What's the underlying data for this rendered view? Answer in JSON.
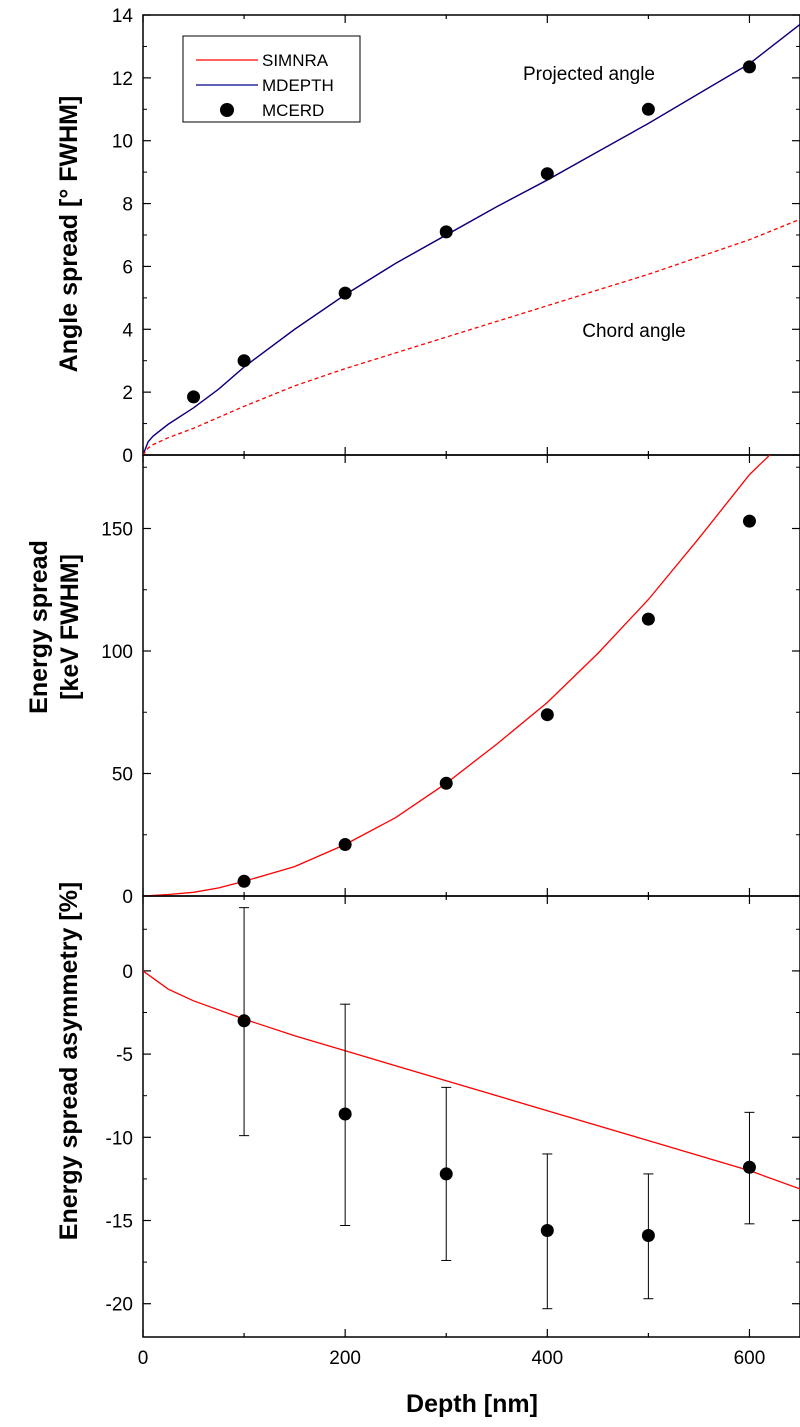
{
  "chart_data": [
    {
      "type": "line",
      "panel": "top",
      "ylabel": "Angle spread [° FWHM]",
      "xlabel": "",
      "xlim": [
        0,
        650
      ],
      "ylim": [
        0,
        14
      ],
      "yticks": [
        0,
        2,
        4,
        6,
        8,
        10,
        12,
        14
      ],
      "legend": {
        "placement": "top-left",
        "entries": [
          "SIMNRA",
          "MDEPTH",
          "MCERD"
        ]
      },
      "annotations": [
        "Projected angle",
        "Chord angle"
      ],
      "series": [
        {
          "name": "SIMNRA",
          "color": "#ff0000",
          "style": "solid",
          "x": [
            0,
            5,
            10,
            25,
            50,
            75,
            100,
            150,
            200,
            250,
            300,
            350,
            400,
            450,
            500,
            550,
            600,
            650
          ],
          "y": [
            0,
            0.42,
            0.6,
            0.98,
            1.5,
            2.1,
            2.8,
            4.0,
            5.1,
            6.1,
            7.0,
            7.9,
            8.75,
            9.65,
            10.55,
            11.5,
            12.45,
            13.7
          ]
        },
        {
          "name": "MDEPTH",
          "color": "#00008b",
          "style": "solid",
          "x": [
            0,
            5,
            10,
            25,
            50,
            75,
            100,
            150,
            200,
            250,
            300,
            350,
            400,
            450,
            500,
            550,
            600,
            650
          ],
          "y": [
            0,
            0.42,
            0.6,
            0.98,
            1.5,
            2.1,
            2.8,
            4.0,
            5.1,
            6.1,
            7.0,
            7.9,
            8.75,
            9.65,
            10.55,
            11.5,
            12.45,
            13.7
          ]
        },
        {
          "name": "",
          "color": "#ff0000",
          "style": "dashed",
          "x": [
            0,
            5,
            10,
            25,
            50,
            100,
            150,
            200,
            250,
            300,
            350,
            400,
            450,
            500,
            550,
            600,
            650
          ],
          "y": [
            0,
            0.22,
            0.33,
            0.55,
            0.85,
            1.55,
            2.2,
            2.75,
            3.25,
            3.75,
            4.25,
            4.75,
            5.25,
            5.75,
            6.3,
            6.85,
            7.5
          ]
        },
        {
          "name": "MCERD",
          "color": "#000000",
          "style": "markers",
          "x": [
            50,
            100,
            200,
            300,
            400,
            500,
            600
          ],
          "y": [
            1.85,
            3.0,
            5.15,
            7.1,
            8.95,
            11.0,
            12.35
          ]
        }
      ]
    },
    {
      "type": "line",
      "panel": "middle",
      "ylabel": "Energy spread",
      "ylabel2": "[keV FWHM]",
      "xlabel": "",
      "xlim": [
        0,
        650
      ],
      "ylim": [
        0,
        180
      ],
      "yticks": [
        0,
        50,
        100,
        150
      ],
      "series": [
        {
          "name": "SIMNRA",
          "color": "#ff0000",
          "style": "solid",
          "x": [
            0,
            25,
            50,
            75,
            100,
            150,
            200,
            250,
            300,
            350,
            400,
            450,
            500,
            550,
            600,
            620
          ],
          "y": [
            0,
            0.6,
            1.5,
            3.3,
            6,
            12,
            21,
            32,
            46,
            62,
            79,
            99,
            121,
            146,
            172,
            180
          ]
        },
        {
          "name": "MCERD",
          "color": "#000000",
          "style": "markers",
          "x": [
            100,
            200,
            300,
            400,
            500,
            600
          ],
          "y": [
            6,
            21,
            46,
            74,
            113,
            153
          ]
        }
      ]
    },
    {
      "type": "line",
      "panel": "bottom",
      "ylabel": "Energy spread asymmetry [%]",
      "xlabel": "Depth [nm]",
      "xlim": [
        0,
        650
      ],
      "ylim": [
        -22,
        4.5
      ],
      "yticks": [
        -20,
        -15,
        -10,
        -5,
        0
      ],
      "ytick_labels": [
        "-20",
        "-15",
        "-10",
        "-5",
        "0"
      ],
      "xticks": [
        0,
        200,
        400,
        600
      ],
      "series": [
        {
          "name": "SIMNRA",
          "color": "#ff0000",
          "style": "solid",
          "x": [
            0,
            25,
            50,
            100,
            150,
            200,
            300,
            400,
            500,
            600,
            650
          ],
          "y": [
            0,
            -1.1,
            -1.8,
            -2.9,
            -3.9,
            -4.8,
            -6.6,
            -8.4,
            -10.2,
            -12.0,
            -13.1
          ]
        },
        {
          "name": "MCERD",
          "color": "#000000",
          "style": "markers",
          "x": [
            100,
            200,
            300,
            400,
            500,
            600
          ],
          "y": [
            -3.0,
            -8.6,
            -12.2,
            -15.6,
            -15.9,
            -11.8
          ],
          "err_low": [
            -9.9,
            -15.3,
            -17.4,
            -20.3,
            -19.7,
            -15.2
          ],
          "err_high": [
            3.8,
            -2.0,
            -7.0,
            -11.0,
            -12.2,
            -8.5
          ]
        }
      ]
    }
  ]
}
